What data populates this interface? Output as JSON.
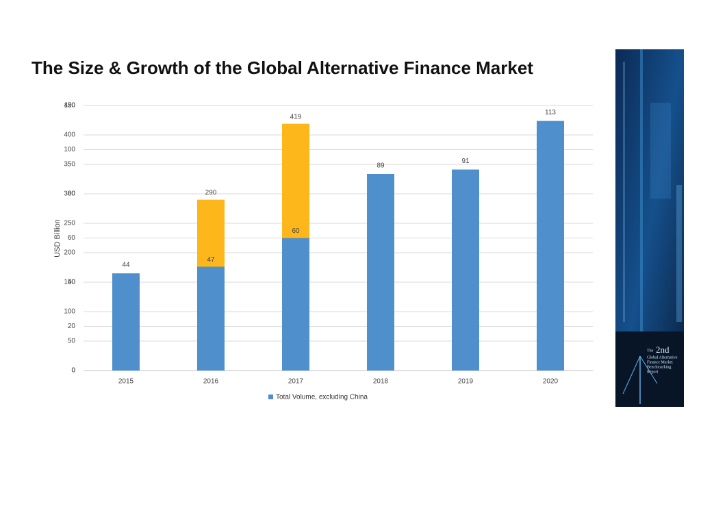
{
  "chart_data": {
    "type": "bar",
    "title": "The Size & Growth of the Global Alternative Finance Market",
    "y_label": "USD Billion",
    "categories": [
      "2015",
      "2016",
      "2017",
      "2018",
      "2019",
      "2020"
    ],
    "series": [
      {
        "color": "#fdb71a",
        "values": [
          null,
          290,
          419,
          null,
          null,
          null
        ]
      },
      {
        "name": "Total Volume, excluding China",
        "color": "#4f8fcc",
        "axis": "y2",
        "values": [
          44,
          47,
          60,
          89,
          91,
          113
        ]
      }
    ],
    "ylim": [
      0,
      450
    ],
    "yticks": [
      0,
      50,
      100,
      150,
      200,
      250,
      300,
      350,
      400,
      450
    ],
    "y2lim": [
      0,
      120
    ],
    "y2ticks": [
      0,
      20,
      40,
      60,
      80,
      100,
      120
    ],
    "grid": true,
    "legend": "bottom"
  },
  "cover": {
    "lines": [
      "The",
      "2nd",
      "Global Alternative",
      "Finance Market",
      "Benchmarking",
      "Report"
    ]
  }
}
